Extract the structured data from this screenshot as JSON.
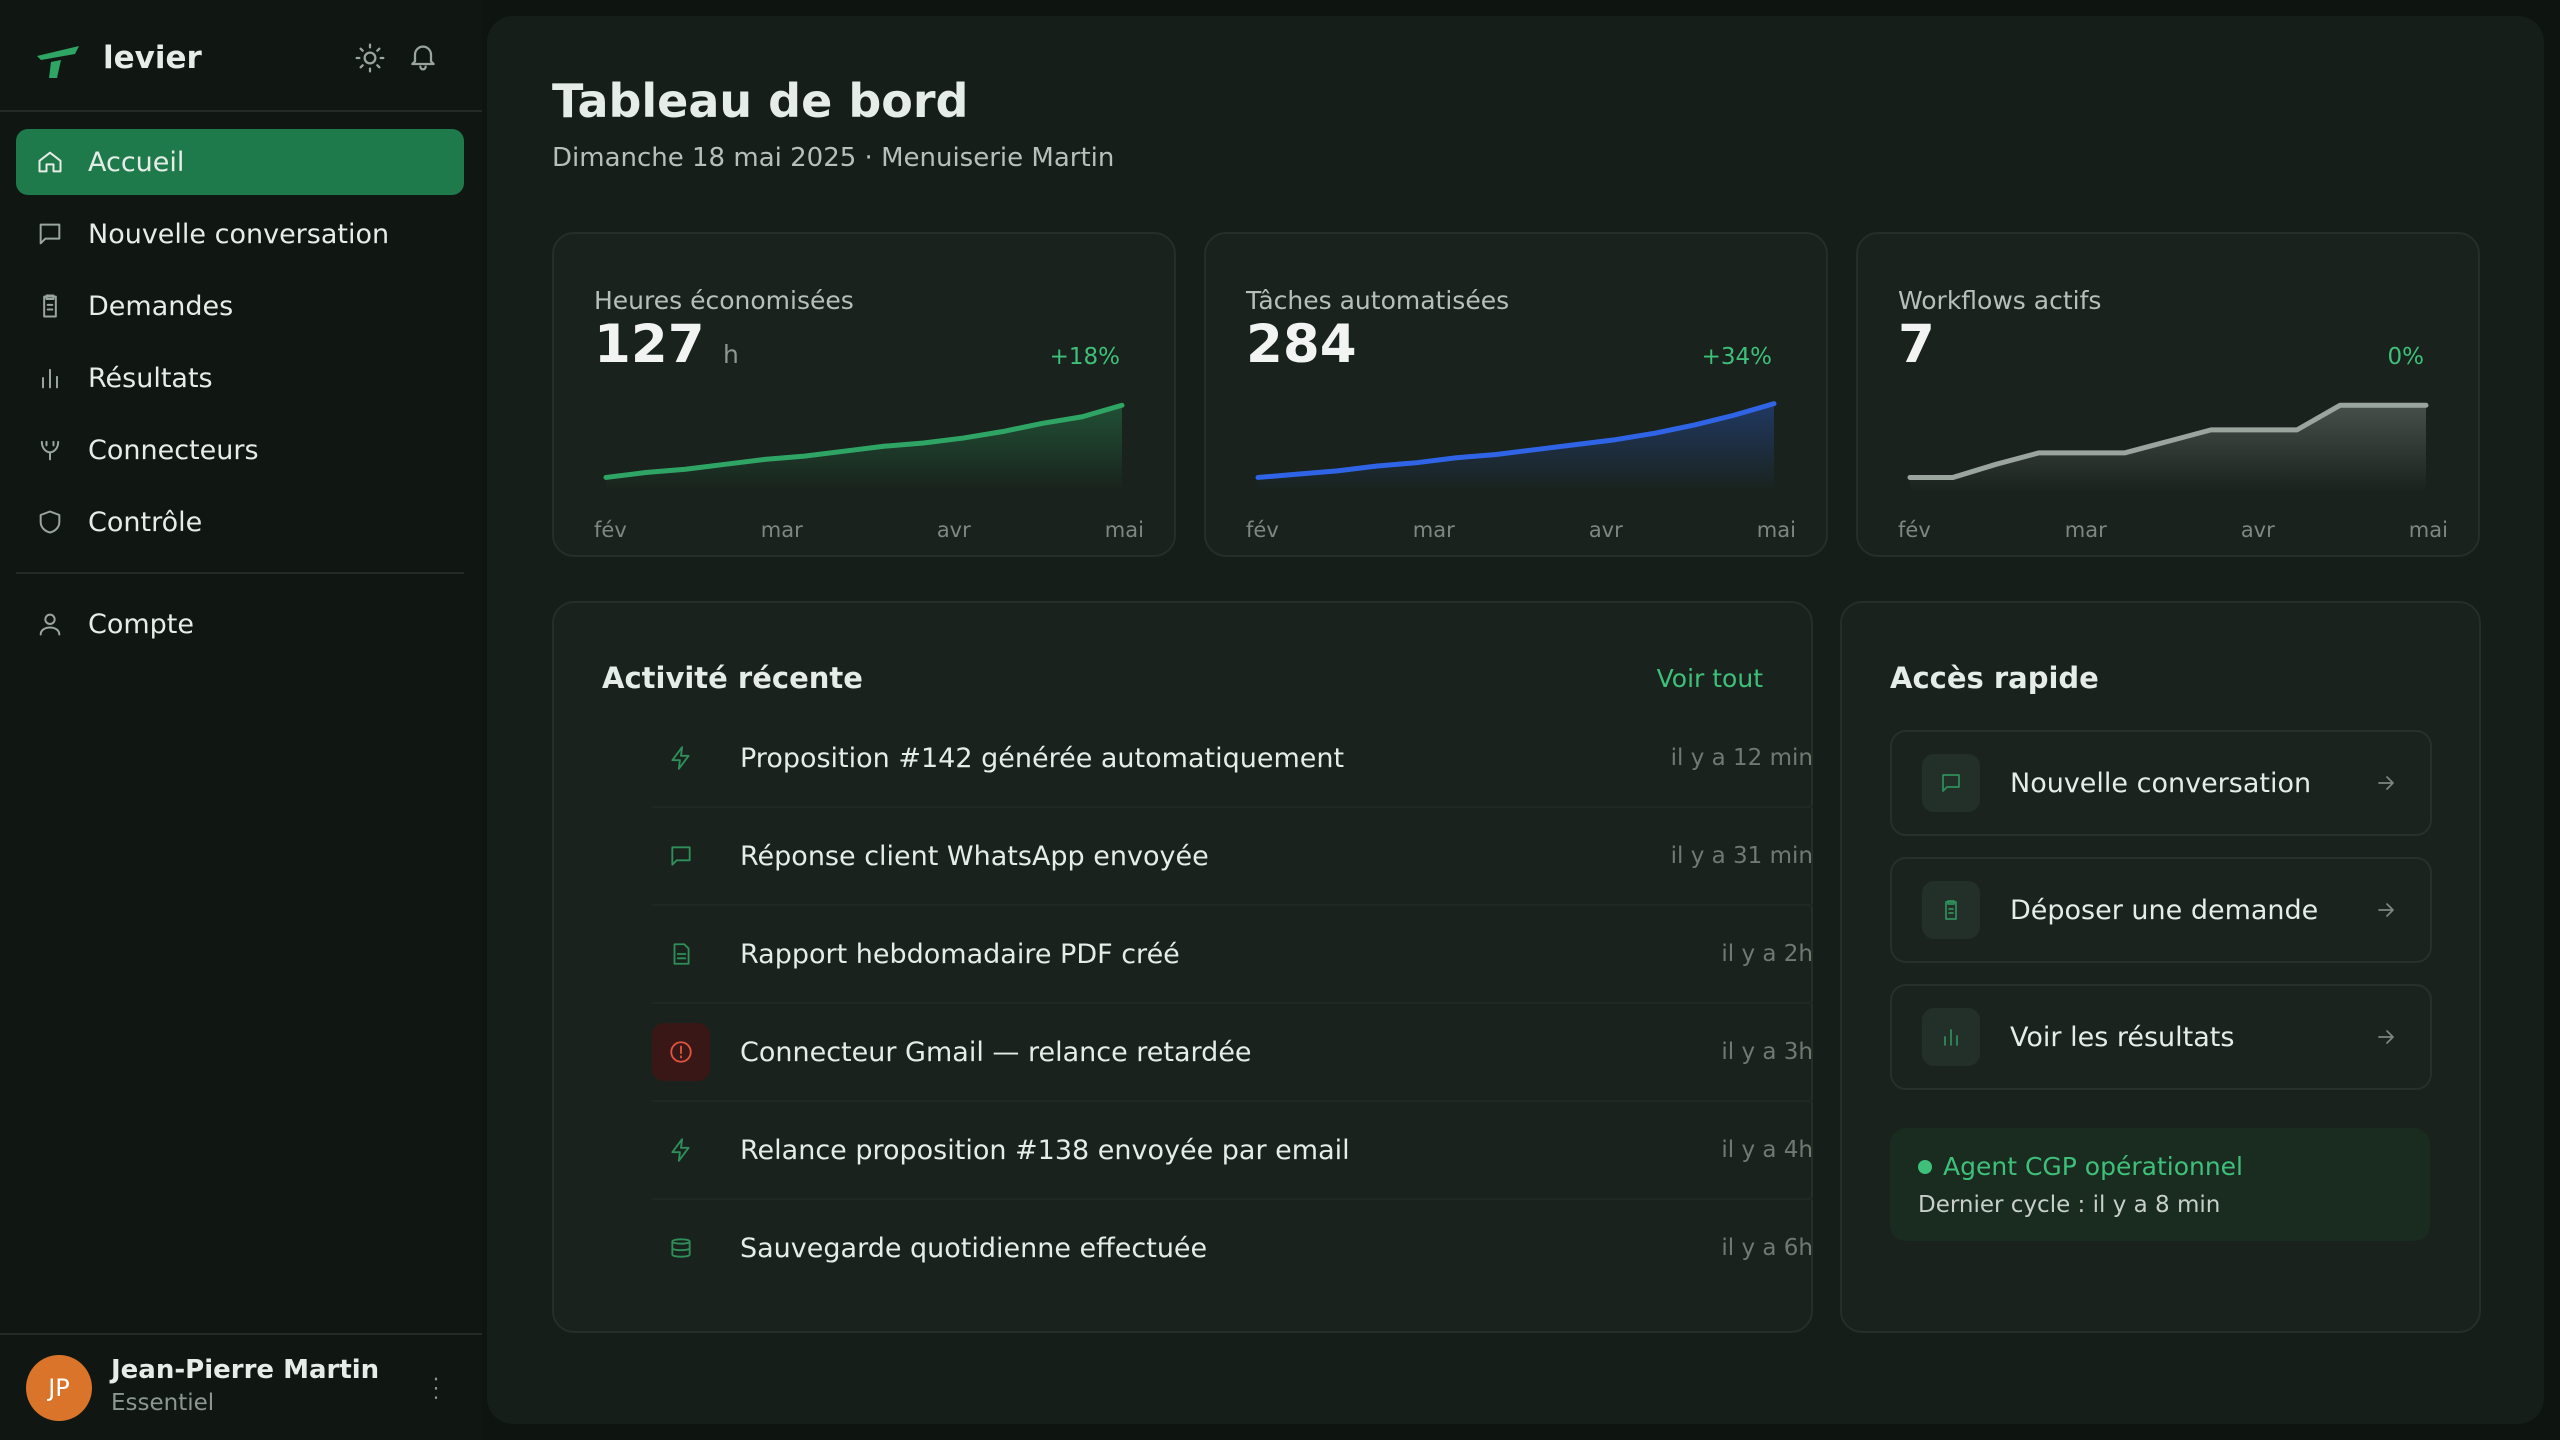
{
  "sidebar": {
    "brand": "levier",
    "nav": [
      "Accueil",
      "Nouvelle conversation",
      "Demandes",
      "Résultats",
      "Connecteurs",
      "Contrôle"
    ],
    "account": "Compte",
    "user": {
      "initials": "JP",
      "name": "Jean-Pierre Martin",
      "plan": "Essentiel"
    }
  },
  "header": {
    "title": "Tableau de bord",
    "subtitle": "Dimanche 18 mai 2025 · Menuiserie Martin"
  },
  "stats": [
    {
      "label": "Heures économisées",
      "value": 127,
      "unit": "h",
      "change": "+18%",
      "months": [
        "fév",
        "mar",
        "avr",
        "mai"
      ],
      "trend": {
        "values": [
          4,
          7,
          9,
          12,
          15,
          17,
          20,
          23,
          25,
          28,
          32,
          37,
          41,
          48
        ],
        "ylim": [
          0,
          50
        ],
        "color": "#2fa565"
      }
    },
    {
      "label": "Tâches automatisées",
      "value": 284,
      "change": "+34%",
      "months": [
        "fév",
        "mar",
        "avr",
        "mai"
      ],
      "trend": {
        "values": [
          4,
          6,
          8,
          11,
          13,
          16,
          18,
          21,
          24,
          27,
          31,
          36,
          42,
          49
        ],
        "ylim": [
          0,
          50
        ],
        "color": "#2f64e6"
      }
    },
    {
      "label": "Workflows actifs",
      "value": 7,
      "change": "0%",
      "months": [
        "fév",
        "mar",
        "avr",
        "mai"
      ],
      "trend": {
        "values": [
          4,
          4,
          12,
          19,
          19,
          19,
          26,
          33,
          33,
          33,
          48,
          48,
          48
        ],
        "ylim": [
          0,
          50
        ],
        "color": "#9aa59e"
      }
    }
  ],
  "activity": {
    "title": "Activité récente",
    "link": "Voir tout",
    "items": [
      {
        "text": "Proposition #142 générée automatiquement",
        "time": "il y a 12 min"
      },
      {
        "text": "Réponse client WhatsApp envoyée",
        "time": "il y a 31 min"
      },
      {
        "text": "Rapport hebdomadaire PDF créé",
        "time": "il y a 2h"
      },
      {
        "text": "Connecteur Gmail — relance retardée",
        "time": "il y a 3h"
      },
      {
        "text": "Relance proposition #138 envoyée par email",
        "time": "il y a 4h"
      },
      {
        "text": "Sauvegarde quotidienne effectuée",
        "time": "il y a 6h"
      }
    ]
  },
  "quick": {
    "title": "Accès rapide",
    "actions": [
      "Nouvelle conversation",
      "Déposer une demande",
      "Voir les résultats"
    ],
    "status": {
      "title": "Agent CGP opérationnel",
      "detail": "Dernier cycle : il y a 8 min"
    }
  }
}
